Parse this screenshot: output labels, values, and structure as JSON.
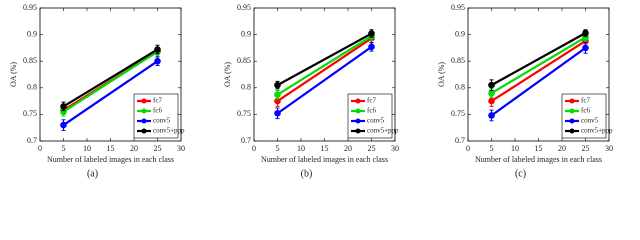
{
  "chart_data": [
    {
      "type": "line",
      "caption": "(a)",
      "xlabel": "Number of labeled images in each class",
      "ylabel": "OA (%)",
      "x": [
        5,
        25
      ],
      "xlim": [
        0,
        30
      ],
      "xticks": [
        0,
        5,
        10,
        15,
        20,
        25,
        30
      ],
      "ylim": [
        0.7,
        0.95
      ],
      "yticks": [
        0.7,
        0.75,
        0.8,
        0.85,
        0.9,
        0.95
      ],
      "legend": "lower right",
      "series": [
        {
          "name": "fc7",
          "color": "#ff0000",
          "values": [
            0.758,
            0.868
          ],
          "errors": [
            0.008,
            0.008
          ]
        },
        {
          "name": "fc6",
          "color": "#00dd00",
          "values": [
            0.755,
            0.868
          ],
          "errors": [
            0.008,
            0.008
          ]
        },
        {
          "name": "conv5",
          "color": "#0000ff",
          "values": [
            0.73,
            0.85
          ],
          "errors": [
            0.01,
            0.008
          ]
        },
        {
          "name": "conv5+ppp",
          "color": "#000000",
          "values": [
            0.765,
            0.872
          ],
          "errors": [
            0.008,
            0.008
          ]
        }
      ]
    },
    {
      "type": "line",
      "caption": "(b)",
      "xlabel": "Number of labeled images in each class",
      "ylabel": "OA (%)",
      "x": [
        5,
        25
      ],
      "xlim": [
        0,
        30
      ],
      "xticks": [
        0,
        5,
        10,
        15,
        20,
        25,
        30
      ],
      "ylim": [
        0.7,
        0.95
      ],
      "yticks": [
        0.7,
        0.75,
        0.8,
        0.85,
        0.9,
        0.95
      ],
      "legend": "lower right",
      "series": [
        {
          "name": "fc7",
          "color": "#ff0000",
          "values": [
            0.775,
            0.893
          ],
          "errors": [
            0.01,
            0.008
          ]
        },
        {
          "name": "fc6",
          "color": "#00dd00",
          "values": [
            0.787,
            0.897
          ],
          "errors": [
            0.008,
            0.008
          ]
        },
        {
          "name": "conv5",
          "color": "#0000ff",
          "values": [
            0.752,
            0.877
          ],
          "errors": [
            0.01,
            0.008
          ]
        },
        {
          "name": "conv5+ppp",
          "color": "#000000",
          "values": [
            0.805,
            0.902
          ],
          "errors": [
            0.007,
            0.007
          ]
        }
      ]
    },
    {
      "type": "line",
      "caption": "(c)",
      "xlabel": "Number of labeled images in each class",
      "ylabel": "OA (%)",
      "x": [
        5,
        25
      ],
      "xlim": [
        0,
        30
      ],
      "xticks": [
        0,
        5,
        10,
        15,
        20,
        25,
        30
      ],
      "ylim": [
        0.7,
        0.95
      ],
      "yticks": [
        0.7,
        0.75,
        0.8,
        0.85,
        0.9,
        0.95
      ],
      "legend": "lower right",
      "series": [
        {
          "name": "fc7",
          "color": "#ff0000",
          "values": [
            0.775,
            0.888
          ],
          "errors": [
            0.01,
            0.008
          ]
        },
        {
          "name": "fc6",
          "color": "#00dd00",
          "values": [
            0.79,
            0.895
          ],
          "errors": [
            0.008,
            0.007
          ]
        },
        {
          "name": "conv5",
          "color": "#0000ff",
          "values": [
            0.748,
            0.875
          ],
          "errors": [
            0.01,
            0.01
          ]
        },
        {
          "name": "conv5+ppp",
          "color": "#000000",
          "values": [
            0.805,
            0.903
          ],
          "errors": [
            0.01,
            0.006
          ]
        }
      ]
    }
  ]
}
